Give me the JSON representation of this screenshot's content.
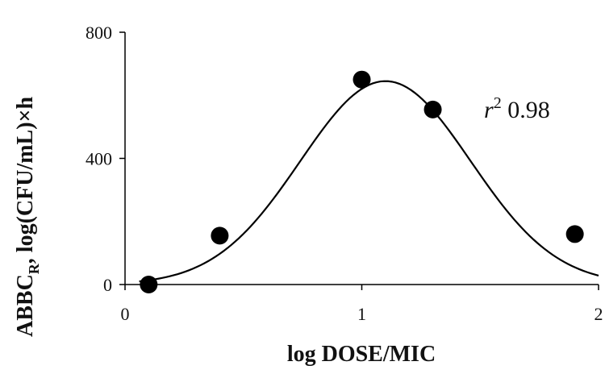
{
  "chart_data": {
    "type": "scatter",
    "xlabel": "log DOSE/MIC",
    "ylabel": {
      "main": "ABBC",
      "subscript": "R",
      "rest": ", log(CFU/mL)×h"
    },
    "xlim": [
      0,
      2
    ],
    "ylim": [
      0,
      800
    ],
    "xticks": [
      "0",
      "1",
      "2"
    ],
    "yticks": [
      "0",
      "400",
      "800"
    ],
    "grid": false,
    "legend": "none",
    "series": [
      {
        "values_xy": [
          [
            0.1,
            0
          ],
          [
            0.4,
            155
          ],
          [
            1.0,
            650
          ],
          [
            1.3,
            555
          ],
          [
            1.9,
            160
          ]
        ]
      }
    ],
    "fit": {
      "kind": "gaussian",
      "amplitude": 645,
      "center": 1.1,
      "sigma": 0.36,
      "x_from": 0.06,
      "x_to": 2.0
    },
    "annotation": {
      "r_symbol": "r",
      "exponent": "2",
      "value": " 0.98"
    },
    "colors": {
      "ink": "#000000"
    }
  }
}
